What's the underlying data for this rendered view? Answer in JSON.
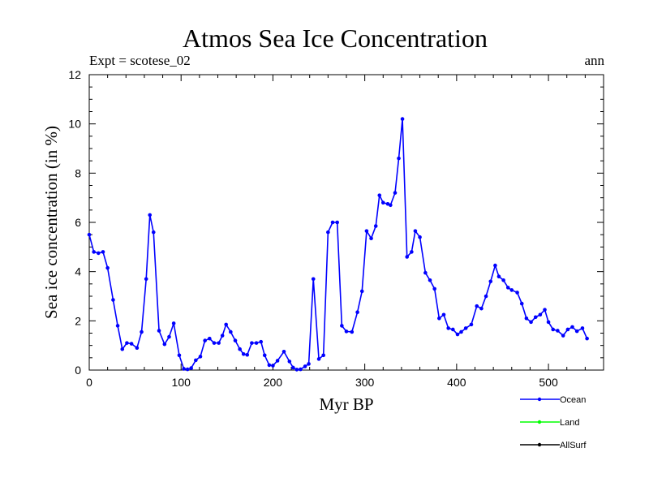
{
  "chart_data": {
    "type": "line",
    "title": "Atmos Sea Ice Concentration",
    "subtitle_left": "Expt = scotese_02",
    "subtitle_right": "ann",
    "xlabel": "Myr BP",
    "ylabel": "Sea ice concentration (in %)",
    "xlim": [
      0,
      560
    ],
    "ylim": [
      0,
      12
    ],
    "xticks": [
      0,
      100,
      200,
      300,
      400,
      500
    ],
    "yticks": [
      0,
      2,
      4,
      6,
      8,
      10,
      12
    ],
    "grid": false,
    "legend_position": "bottom-right",
    "series": [
      {
        "name": "Ocean",
        "color": "#0000ff",
        "marker": "circle",
        "points": [
          [
            0,
            5.5
          ],
          [
            5,
            4.8
          ],
          [
            10,
            4.75
          ],
          [
            15,
            4.8
          ],
          [
            20,
            4.15
          ],
          [
            26,
            2.85
          ],
          [
            31,
            1.8
          ],
          [
            36,
            0.85
          ],
          [
            41,
            1.1
          ],
          [
            46,
            1.07
          ],
          [
            52,
            0.9
          ],
          [
            57,
            1.55
          ],
          [
            62,
            3.7
          ],
          [
            66,
            6.3
          ],
          [
            70,
            5.6
          ],
          [
            76,
            1.6
          ],
          [
            82,
            1.05
          ],
          [
            87,
            1.35
          ],
          [
            92,
            1.9
          ],
          [
            98,
            0.6
          ],
          [
            103,
            0.05
          ],
          [
            107,
            0.03
          ],
          [
            111,
            0.08
          ],
          [
            116,
            0.4
          ],
          [
            121,
            0.55
          ],
          [
            126,
            1.2
          ],
          [
            131,
            1.28
          ],
          [
            136,
            1.1
          ],
          [
            141,
            1.1
          ],
          [
            145,
            1.4
          ],
          [
            149,
            1.85
          ],
          [
            154,
            1.55
          ],
          [
            159,
            1.2
          ],
          [
            164,
            0.85
          ],
          [
            168,
            0.65
          ],
          [
            172,
            0.62
          ],
          [
            177,
            1.1
          ],
          [
            182,
            1.1
          ],
          [
            187,
            1.15
          ],
          [
            191,
            0.6
          ],
          [
            196,
            0.2
          ],
          [
            200,
            0.18
          ],
          [
            205,
            0.38
          ],
          [
            212,
            0.75
          ],
          [
            218,
            0.35
          ],
          [
            222,
            0.1
          ],
          [
            226,
            0.02
          ],
          [
            230,
            0.03
          ],
          [
            235,
            0.15
          ],
          [
            239,
            0.25
          ],
          [
            244,
            3.7
          ],
          [
            250,
            0.45
          ],
          [
            255,
            0.6
          ],
          [
            260,
            5.6
          ],
          [
            265,
            6.0
          ],
          [
            270,
            6.0
          ],
          [
            275,
            1.8
          ],
          [
            280,
            1.57
          ],
          [
            286,
            1.55
          ],
          [
            292,
            2.35
          ],
          [
            297,
            3.2
          ],
          [
            302,
            5.65
          ],
          [
            307,
            5.35
          ],
          [
            312,
            5.85
          ],
          [
            316,
            7.1
          ],
          [
            320,
            6.8
          ],
          [
            325,
            6.75
          ],
          [
            328,
            6.7
          ],
          [
            333,
            7.2
          ],
          [
            337,
            8.6
          ],
          [
            341,
            10.2
          ],
          [
            346,
            4.6
          ],
          [
            351,
            4.8
          ],
          [
            355,
            5.65
          ],
          [
            360,
            5.4
          ],
          [
            366,
            3.95
          ],
          [
            371,
            3.65
          ],
          [
            376,
            3.3
          ],
          [
            381,
            2.1
          ],
          [
            386,
            2.25
          ],
          [
            391,
            1.7
          ],
          [
            396,
            1.65
          ],
          [
            401,
            1.45
          ],
          [
            405,
            1.55
          ],
          [
            410,
            1.7
          ],
          [
            416,
            1.85
          ],
          [
            422,
            2.6
          ],
          [
            427,
            2.5
          ],
          [
            432,
            3.0
          ],
          [
            437,
            3.6
          ],
          [
            442,
            4.25
          ],
          [
            446,
            3.8
          ],
          [
            451,
            3.65
          ],
          [
            456,
            3.35
          ],
          [
            460,
            3.25
          ],
          [
            466,
            3.15
          ],
          [
            471,
            2.7
          ],
          [
            476,
            2.1
          ],
          [
            481,
            1.95
          ],
          [
            486,
            2.15
          ],
          [
            491,
            2.25
          ],
          [
            496,
            2.45
          ],
          [
            500,
            1.95
          ],
          [
            505,
            1.65
          ],
          [
            510,
            1.6
          ],
          [
            516,
            1.4
          ],
          [
            521,
            1.65
          ],
          [
            526,
            1.75
          ],
          [
            531,
            1.58
          ],
          [
            537,
            1.7
          ],
          [
            542,
            1.28
          ]
        ]
      },
      {
        "name": "Land",
        "color": "#00ff00",
        "marker": "circle",
        "points": []
      },
      {
        "name": "AllSurf",
        "color": "#000000",
        "marker": "circle",
        "points": []
      }
    ]
  }
}
